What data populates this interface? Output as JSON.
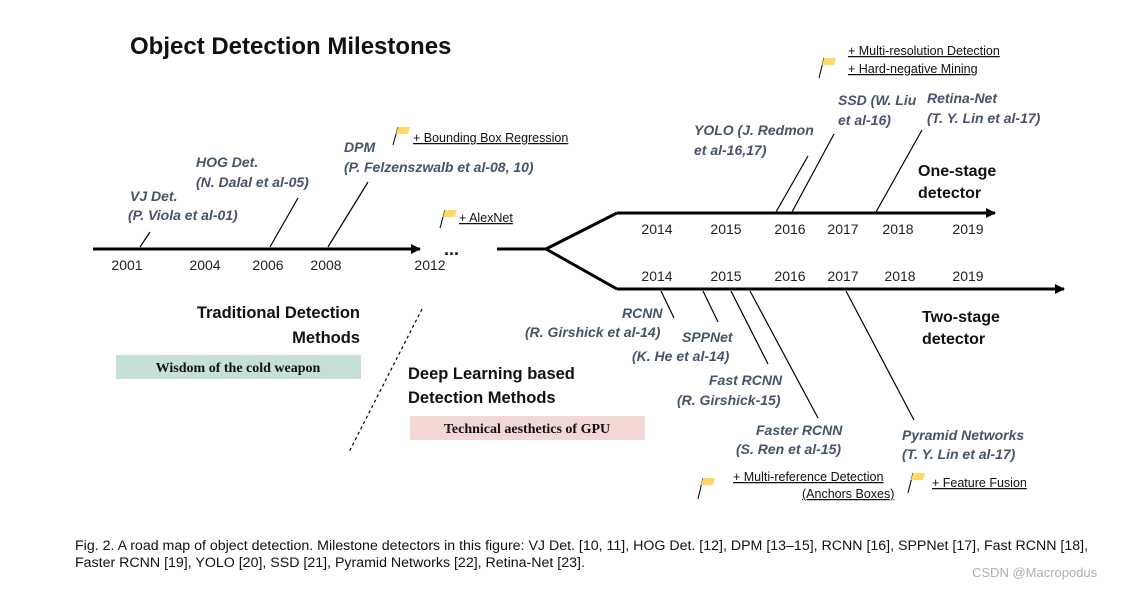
{
  "title": "Object Detection Milestones",
  "colors": {
    "line": "#000000",
    "label_text": "#44546a",
    "year_text": "#222222",
    "flag_fill": "#ffd966",
    "badge_green": "#c5e0d8",
    "badge_pink": "#f2d7d5"
  },
  "main_timeline": {
    "years": [
      "2001",
      "2004",
      "2006",
      "2008",
      "2012"
    ],
    "ellipsis": "..."
  },
  "one_stage": {
    "label_line1": "One-stage",
    "label_line2": "detector",
    "years": [
      "2014",
      "2015",
      "2016",
      "2017",
      "2018",
      "2019"
    ]
  },
  "two_stage": {
    "label_line1": "Two-stage",
    "label_line2": "detector",
    "years": [
      "2014",
      "2015",
      "2016",
      "2017",
      "2018",
      "2019"
    ]
  },
  "traditional": {
    "milestones": [
      {
        "line1": "VJ Det.",
        "line2": "(P. Viola et al-01)"
      },
      {
        "line1": "HOG Det.",
        "line2": "(N. Dalal et al-05)"
      },
      {
        "line1": "DPM",
        "line2": "(P. Felzenszwalb et al-08, 10)"
      }
    ],
    "heading_line1": "Traditional Detection",
    "heading_line2": "Methods",
    "badge": "Wisdom of the cold weapon"
  },
  "deep": {
    "heading_line1": "Deep Learning based",
    "heading_line2": "Detection Methods",
    "badge": "Technical aesthetics of GPU"
  },
  "one_stage_detectors": [
    {
      "line1": "YOLO (J. Redmon",
      "line2": "et al-16,17)"
    },
    {
      "line1": "SSD (W. Liu",
      "line2": "et al-16)"
    },
    {
      "line1": "Retina-Net",
      "line2": "(T. Y. Lin et al-17)"
    }
  ],
  "two_stage_detectors": [
    {
      "line1": "RCNN",
      "line2": "(R. Girshick et al-14)"
    },
    {
      "line1": "SPPNet",
      "line2": "(K. He et al-14)"
    },
    {
      "line1": "Fast RCNN",
      "line2": "(R. Girshick-15)"
    },
    {
      "line1": "Faster RCNN",
      "line2": "(S. Ren et al-15)"
    },
    {
      "line1": "Pyramid Networks",
      "line2": "(T. Y. Lin et al-17)"
    }
  ],
  "notes": {
    "bbox_regression": "+ Bounding Box Regression",
    "alexnet": "+ AlexNet",
    "multi_resolution": "+ Multi-resolution Detection",
    "hard_negative": "+ Hard-negative Mining",
    "multi_reference": "+ Multi-reference Detection",
    "anchor_boxes": "(Anchors Boxes)",
    "feature_fusion": "+ Feature Fusion"
  },
  "caption": "Fig. 2.  A road map of object detection. Milestone detectors in this figure: VJ Det. [10, 11], HOG Det. [12], DPM [13–15], RCNN [16], SPPNet [17], Fast RCNN [18], Faster RCNN [19], YOLO [20], SSD [21], Pyramid Networks [22], Retina-Net [23].",
  "watermark": "CSDN @Macropodus"
}
